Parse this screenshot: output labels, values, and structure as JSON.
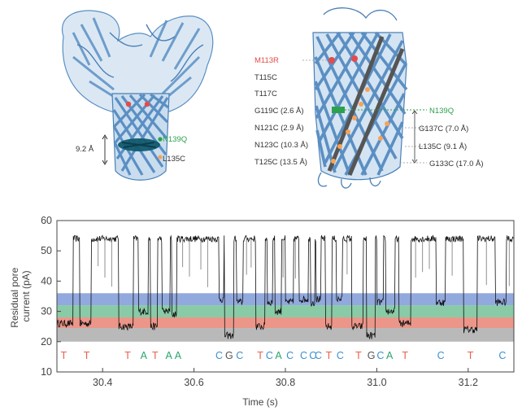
{
  "colors": {
    "T": "#e8604c",
    "A": "#2aa56e",
    "G": "#555555",
    "C": "#3e8fd0",
    "blue_band": "#4a6fc8",
    "green_band": "#3aa86a",
    "red_band": "#e0503a",
    "gray_band": "#8a8a8a",
    "protein": "#5b8fc3",
    "trace": "#111111",
    "mutant_red": "#e44b4b",
    "mutant_green": "#2ca04c"
  },
  "left_structure": {
    "dimension_label": "9.2 Å",
    "labels": [
      "N139Q",
      "L135C"
    ]
  },
  "right_structure": {
    "labels_left": [
      "M113R",
      "T115C",
      "T117C",
      "G119C (2.6 Å)",
      "N121C (2.9 Å)",
      "N123C (10.3 Å)",
      "T125C (13.5 Å)"
    ],
    "labels_right": [
      "N139Q",
      "G137C (7.0 Å)",
      "L135C (9.1 Å)",
      "G133C (17.0 Å)"
    ]
  },
  "chart_data": {
    "type": "line",
    "xlabel": "Time (s)",
    "ylabel": "Residual pore current (pA)",
    "xlim": [
      30.3,
      31.3
    ],
    "ylim": [
      10,
      60
    ],
    "xticks": [
      "30.4",
      "30.6",
      "30.8",
      "31.0",
      "31.2"
    ],
    "yticks": [
      "10",
      "20",
      "30",
      "40",
      "50",
      "60"
    ],
    "grid": false,
    "bands": [
      {
        "name": "blue",
        "y": [
          32,
          36
        ]
      },
      {
        "name": "green",
        "y": [
          28,
          32
        ]
      },
      {
        "name": "red",
        "y": [
          24.5,
          28
        ]
      },
      {
        "name": "gray",
        "y": [
          20,
          24.5
        ]
      }
    ],
    "open_pore_level": 54,
    "bases": [
      {
        "x": 30.315,
        "b": "T"
      },
      {
        "x": 30.365,
        "b": "T"
      },
      {
        "x": 30.455,
        "b": "T"
      },
      {
        "x": 30.49,
        "b": "A"
      },
      {
        "x": 30.515,
        "b": "T"
      },
      {
        "x": 30.545,
        "b": "A"
      },
      {
        "x": 30.565,
        "b": "A"
      },
      {
        "x": 30.655,
        "b": "C"
      },
      {
        "x": 30.677,
        "b": "G"
      },
      {
        "x": 30.7,
        "b": "C"
      },
      {
        "x": 30.745,
        "b": "T"
      },
      {
        "x": 30.765,
        "b": "C"
      },
      {
        "x": 30.785,
        "b": "A"
      },
      {
        "x": 30.81,
        "b": "C"
      },
      {
        "x": 30.84,
        "b": "C"
      },
      {
        "x": 30.86,
        "b": "C"
      },
      {
        "x": 30.872,
        "b": "C"
      },
      {
        "x": 30.895,
        "b": "T"
      },
      {
        "x": 30.92,
        "b": "C"
      },
      {
        "x": 30.96,
        "b": "T"
      },
      {
        "x": 30.988,
        "b": "G"
      },
      {
        "x": 31.008,
        "b": "C"
      },
      {
        "x": 31.028,
        "b": "A"
      },
      {
        "x": 31.062,
        "b": "T"
      },
      {
        "x": 31.14,
        "b": "C"
      },
      {
        "x": 31.205,
        "b": "T"
      },
      {
        "x": 31.275,
        "b": "C"
      }
    ],
    "events": [
      {
        "x0": 30.3,
        "x1": 30.335,
        "y": 26
      },
      {
        "x0": 30.35,
        "x1": 30.375,
        "y": 26
      },
      {
        "x0": 30.435,
        "x1": 30.468,
        "y": 25
      },
      {
        "x0": 30.478,
        "x1": 30.5,
        "y": 30
      },
      {
        "x0": 30.505,
        "x1": 30.52,
        "y": 25
      },
      {
        "x0": 30.53,
        "x1": 30.548,
        "y": 30
      },
      {
        "x0": 30.552,
        "x1": 30.562,
        "y": 29
      },
      {
        "x0": 30.655,
        "x1": 30.665,
        "y": 34
      },
      {
        "x0": 30.667,
        "x1": 30.687,
        "y": 22
      },
      {
        "x0": 30.693,
        "x1": 30.708,
        "y": 33
      },
      {
        "x0": 30.735,
        "x1": 30.755,
        "y": 25
      },
      {
        "x0": 30.76,
        "x1": 30.772,
        "y": 33
      },
      {
        "x0": 30.777,
        "x1": 30.792,
        "y": 30
      },
      {
        "x0": 30.8,
        "x1": 30.818,
        "y": 33
      },
      {
        "x0": 30.83,
        "x1": 30.85,
        "y": 34
      },
      {
        "x0": 30.855,
        "x1": 30.865,
        "y": 33
      },
      {
        "x0": 30.867,
        "x1": 30.878,
        "y": 34
      },
      {
        "x0": 30.888,
        "x1": 30.902,
        "y": 25
      },
      {
        "x0": 30.912,
        "x1": 30.925,
        "y": 34
      },
      {
        "x0": 30.945,
        "x1": 30.97,
        "y": 25
      },
      {
        "x0": 30.978,
        "x1": 30.997,
        "y": 22
      },
      {
        "x0": 31.0,
        "x1": 31.015,
        "y": 33
      },
      {
        "x0": 31.02,
        "x1": 31.04,
        "y": 30
      },
      {
        "x0": 31.048,
        "x1": 31.075,
        "y": 26
      },
      {
        "x0": 31.13,
        "x1": 31.15,
        "y": 33
      },
      {
        "x0": 31.19,
        "x1": 31.22,
        "y": 24
      },
      {
        "x0": 31.26,
        "x1": 31.283,
        "y": 33
      }
    ],
    "spikes": [
      30.39,
      30.405,
      30.42,
      30.575,
      30.59,
      30.615,
      30.63,
      30.715,
      30.725,
      30.795,
      30.822,
      30.935,
      31.085,
      31.1,
      31.115,
      31.165,
      31.24,
      31.29
    ]
  }
}
